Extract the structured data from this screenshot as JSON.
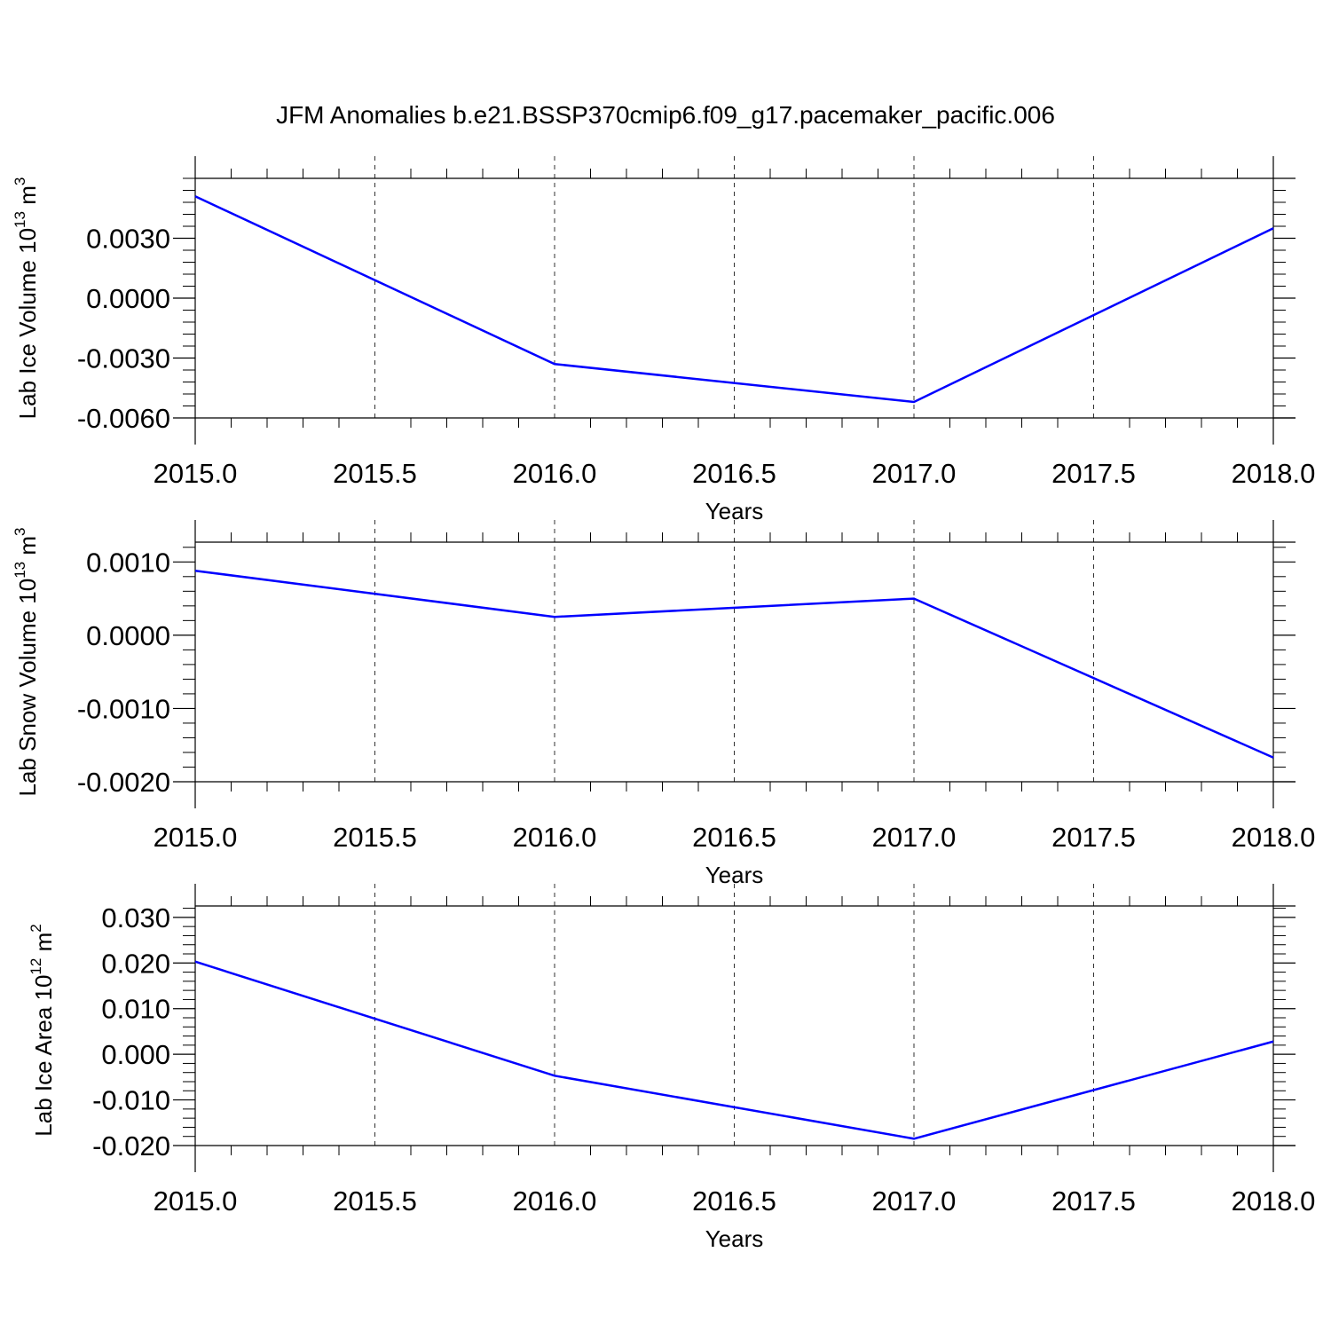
{
  "title": "JFM Anomalies b.e21.BSSP370cmip6.f09_g17.pacemaker_pacific.006",
  "colors": {
    "line": "#0000ff",
    "axis": "#000000",
    "grid": "#000000"
  },
  "chart_data": [
    {
      "type": "line",
      "ylabel_main": "Lab Ice Volume 10",
      "ylabel_exp": "13",
      "ylabel_unit": "m",
      "ylabel_unit_exp": "3",
      "xlabel": "Years",
      "xlim": [
        2015.0,
        2018.0
      ],
      "ylim": [
        -0.006,
        0.006
      ],
      "x_ticks": [
        "2015.0",
        "2015.5",
        "2016.0",
        "2016.5",
        "2017.0",
        "2017.5",
        "2018.0"
      ],
      "y_ticks": [
        "0.0030",
        "0.0000",
        "-0.0030",
        "-0.0060"
      ],
      "y_tick_values": [
        0.003,
        0.0,
        -0.003,
        -0.006
      ],
      "x": [
        2015,
        2016,
        2017,
        2018
      ],
      "values": [
        0.0051,
        -0.0033,
        -0.0052,
        0.0035
      ],
      "grid": "vertical dashed"
    },
    {
      "type": "line",
      "ylabel_main": "Lab Snow Volume 10",
      "ylabel_exp": "13",
      "ylabel_unit": "m",
      "ylabel_unit_exp": "3",
      "xlabel": "Years",
      "xlim": [
        2015.0,
        2018.0
      ],
      "ylim": [
        -0.002,
        0.00127
      ],
      "x_ticks": [
        "2015.0",
        "2015.5",
        "2016.0",
        "2016.5",
        "2017.0",
        "2017.5",
        "2018.0"
      ],
      "y_ticks": [
        "0.0010",
        "0.0000",
        "-0.0010",
        "-0.0020"
      ],
      "y_tick_values": [
        0.001,
        0.0,
        -0.001,
        -0.002
      ],
      "x": [
        2015,
        2016,
        2017,
        2018
      ],
      "values": [
        0.00088,
        0.00025,
        0.0005,
        -0.00167
      ],
      "grid": "vertical dashed"
    },
    {
      "type": "line",
      "ylabel_main": "Lab Ice Area 10",
      "ylabel_exp": "12",
      "ylabel_unit": "m",
      "ylabel_unit_exp": "2",
      "xlabel": "Years",
      "xlim": [
        2015.0,
        2018.0
      ],
      "ylim": [
        -0.02,
        0.0325
      ],
      "x_ticks": [
        "2015.0",
        "2015.5",
        "2016.0",
        "2016.5",
        "2017.0",
        "2017.5",
        "2018.0"
      ],
      "y_ticks": [
        "0.030",
        "0.020",
        "0.010",
        "0.000",
        "-0.010",
        "-0.020"
      ],
      "y_tick_values": [
        0.03,
        0.02,
        0.01,
        0.0,
        -0.01,
        -0.02
      ],
      "x": [
        2015,
        2016,
        2017,
        2018
      ],
      "values": [
        0.0203,
        -0.0047,
        -0.0185,
        0.0028
      ],
      "grid": "vertical dashed"
    }
  ]
}
